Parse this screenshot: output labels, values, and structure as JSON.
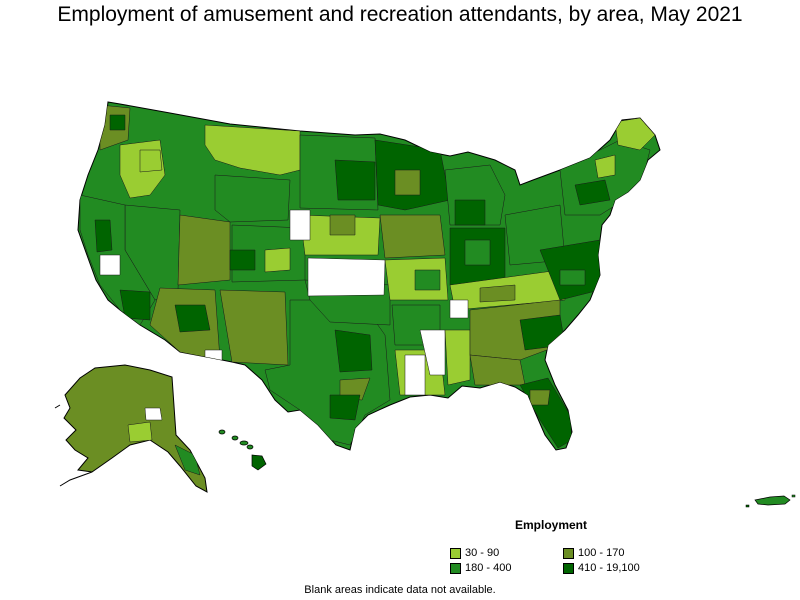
{
  "title": "Employment of amusement and recreation attendants, by area, May 2021",
  "legend": {
    "title": "Employment",
    "items": [
      {
        "label": "30 - 90",
        "color": "#9acd32"
      },
      {
        "label": "100 - 170",
        "color": "#6b8e23"
      },
      {
        "label": "180 - 400",
        "color": "#228b22"
      },
      {
        "label": "410 - 19,100",
        "color": "#006400"
      }
    ]
  },
  "note": "Blank areas indicate data not available.",
  "map_regions": [
    {
      "name": "contiguous-us",
      "color": "#228b22"
    },
    {
      "name": "alaska",
      "color": "#6b8e23"
    },
    {
      "name": "hawaii",
      "color": "#228b22"
    },
    {
      "name": "puerto-rico",
      "color": "#228b22"
    }
  ]
}
